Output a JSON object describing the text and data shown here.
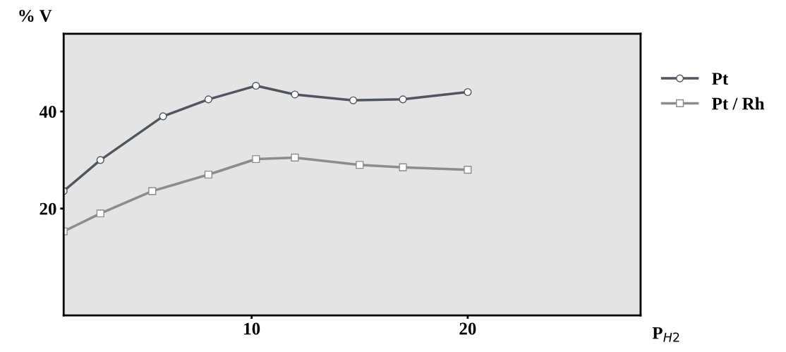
{
  "chart_data": {
    "type": "line",
    "xlabel": "P$_{H2}$",
    "ylabel": "% V",
    "xlim": [
      1.3,
      28
    ],
    "ylim": [
      -2,
      56
    ],
    "xticks": [
      10,
      20
    ],
    "yticks": [
      20,
      40
    ],
    "series": [
      {
        "name": "Pt",
        "color": "#4f5660",
        "x": [
          1.3,
          3,
          5.9,
          8,
          10.2,
          12,
          14.7,
          17,
          20
        ],
        "values": [
          23.6,
          30,
          39,
          42.5,
          45.3,
          43.5,
          42.3,
          42.5,
          44
        ],
        "marker": "circle"
      },
      {
        "name": "Pt / Rh",
        "color": "#8c8c8c",
        "x": [
          1.3,
          3,
          5.4,
          8,
          10.2,
          12,
          15,
          17,
          20
        ],
        "values": [
          15.3,
          19,
          23.6,
          27,
          30.2,
          30.5,
          29,
          28.5,
          28
        ],
        "marker": "square"
      }
    ],
    "legend": "right",
    "grid": false,
    "line_style": "solid"
  }
}
